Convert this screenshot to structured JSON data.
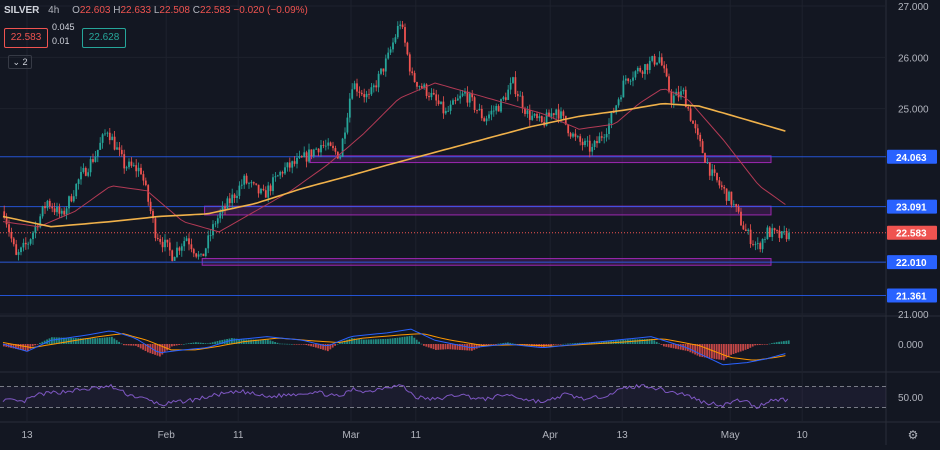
{
  "header": {
    "symbol": "SILVER",
    "interval": "4h",
    "o_label": "O",
    "open": "22.603",
    "h_label": "H",
    "high": "22.633",
    "l_label": "L",
    "low": "22.508",
    "c_label": "C",
    "close": "22.583",
    "change": "−0.020 (−0.09%)",
    "sell_price": "22.583",
    "buy_price": "22.628",
    "spread_top": "0.045",
    "spread_bottom": "0.01",
    "collapse_label": "2"
  },
  "chart_data": {
    "type": "candlestick",
    "title": "",
    "xlabel": "",
    "ylabel": "",
    "ylim": [
      21,
      27
    ],
    "y_ticks": [
      "27.000",
      "26.000",
      "25.000",
      "22.000",
      "21.000"
    ],
    "x_ticks": [
      "13",
      "Feb",
      "11",
      "Mar",
      "11",
      "Apr",
      "13",
      "May",
      "10"
    ],
    "x_tick_index": [
      10,
      68,
      98,
      145,
      172,
      228,
      258,
      303,
      333
    ],
    "bar_count": 312,
    "current_price": 22.583,
    "current_price_label": "22.583",
    "levels": [
      {
        "value": 24.063,
        "label": "24.063"
      },
      {
        "value": 23.091,
        "label": "23.091"
      },
      {
        "value": 22.01,
        "label": "22.010"
      },
      {
        "value": 21.361,
        "label": "21.361"
      }
    ],
    "zones": [
      {
        "from_index": 128,
        "to_index": 320,
        "low": 23.95,
        "high": 24.08
      },
      {
        "from_index": 84,
        "to_index": 320,
        "low": 22.93,
        "high": 23.1
      },
      {
        "from_index": 83,
        "to_index": 320,
        "low": 21.95,
        "high": 22.08
      }
    ],
    "anchors": [
      [
        0,
        23.0
      ],
      [
        5,
        22.1
      ],
      [
        10,
        22.4
      ],
      [
        18,
        23.2
      ],
      [
        24,
        22.9
      ],
      [
        31,
        23.6
      ],
      [
        38,
        24.1
      ],
      [
        43,
        24.6
      ],
      [
        50,
        23.9
      ],
      [
        57,
        23.8
      ],
      [
        63,
        22.6
      ],
      [
        70,
        22.15
      ],
      [
        76,
        22.5
      ],
      [
        82,
        22.05
      ],
      [
        88,
        22.8
      ],
      [
        94,
        23.2
      ],
      [
        100,
        23.6
      ],
      [
        108,
        23.3
      ],
      [
        116,
        23.8
      ],
      [
        124,
        24.0
      ],
      [
        132,
        24.3
      ],
      [
        140,
        24.1
      ],
      [
        145,
        25.5
      ],
      [
        152,
        25.2
      ],
      [
        160,
        26.0
      ],
      [
        165,
        26.7
      ],
      [
        170,
        25.6
      ],
      [
        177,
        25.3
      ],
      [
        184,
        24.9
      ],
      [
        192,
        25.3
      ],
      [
        200,
        24.8
      ],
      [
        207,
        25.1
      ],
      [
        212,
        25.5
      ],
      [
        218,
        24.9
      ],
      [
        224,
        24.7
      ],
      [
        230,
        25.0
      ],
      [
        238,
        24.4
      ],
      [
        245,
        24.2
      ],
      [
        252,
        24.7
      ],
      [
        259,
        25.6
      ],
      [
        266,
        25.8
      ],
      [
        273,
        26.0
      ],
      [
        278,
        25.2
      ],
      [
        283,
        25.3
      ],
      [
        289,
        24.4
      ],
      [
        295,
        23.7
      ],
      [
        303,
        23.2
      ],
      [
        309,
        22.6
      ],
      [
        314,
        22.3
      ],
      [
        318,
        22.6
      ],
      [
        324,
        22.5
      ],
      [
        327,
        22.583
      ]
    ],
    "ma200": [
      [
        0,
        22.9
      ],
      [
        20,
        22.7
      ],
      [
        45,
        22.8
      ],
      [
        65,
        22.9
      ],
      [
        85,
        22.95
      ],
      [
        105,
        23.15
      ],
      [
        125,
        23.45
      ],
      [
        145,
        23.7
      ],
      [
        160,
        23.9
      ],
      [
        180,
        24.15
      ],
      [
        200,
        24.4
      ],
      [
        220,
        24.65
      ],
      [
        240,
        24.85
      ],
      [
        260,
        24.98
      ],
      [
        275,
        25.1
      ],
      [
        290,
        25.05
      ],
      [
        305,
        24.85
      ],
      [
        327,
        24.55
      ]
    ],
    "ma50": [
      [
        0,
        22.8
      ],
      [
        15,
        22.7
      ],
      [
        30,
        23.0
      ],
      [
        45,
        23.5
      ],
      [
        60,
        23.4
      ],
      [
        75,
        22.8
      ],
      [
        90,
        22.6
      ],
      [
        105,
        23.0
      ],
      [
        120,
        23.4
      ],
      [
        135,
        23.9
      ],
      [
        150,
        24.5
      ],
      [
        165,
        25.2
      ],
      [
        180,
        25.5
      ],
      [
        195,
        25.3
      ],
      [
        210,
        25.1
      ],
      [
        225,
        24.9
      ],
      [
        240,
        24.6
      ],
      [
        255,
        24.7
      ],
      [
        265,
        25.1
      ],
      [
        275,
        25.4
      ],
      [
        285,
        25.2
      ],
      [
        300,
        24.4
      ],
      [
        315,
        23.5
      ],
      [
        327,
        23.1
      ]
    ],
    "macd": {
      "value_label": "0.000",
      "macd_line": [
        [
          0,
          0.0
        ],
        [
          10,
          -0.1
        ],
        [
          20,
          0.05
        ],
        [
          35,
          0.12
        ],
        [
          45,
          0.18
        ],
        [
          55,
          0.08
        ],
        [
          65,
          -0.12
        ],
        [
          75,
          -0.08
        ],
        [
          85,
          -0.05
        ],
        [
          95,
          0.05
        ],
        [
          110,
          0.1
        ],
        [
          125,
          0.05
        ],
        [
          135,
          -0.03
        ],
        [
          145,
          0.1
        ],
        [
          160,
          0.15
        ],
        [
          170,
          0.2
        ],
        [
          180,
          0.05
        ],
        [
          195,
          -0.05
        ],
        [
          210,
          0.0
        ],
        [
          225,
          -0.05
        ],
        [
          240,
          0.0
        ],
        [
          255,
          0.05
        ],
        [
          270,
          0.1
        ],
        [
          285,
          -0.05
        ],
        [
          300,
          -0.28
        ],
        [
          310,
          -0.25
        ],
        [
          318,
          -0.2
        ],
        [
          327,
          -0.12
        ]
      ],
      "signal_line": [
        [
          0,
          0.02
        ],
        [
          12,
          -0.05
        ],
        [
          25,
          0.02
        ],
        [
          40,
          0.1
        ],
        [
          50,
          0.14
        ],
        [
          60,
          0.05
        ],
        [
          70,
          -0.08
        ],
        [
          80,
          -0.08
        ],
        [
          90,
          -0.03
        ],
        [
          100,
          0.03
        ],
        [
          115,
          0.08
        ],
        [
          130,
          0.04
        ],
        [
          140,
          0.02
        ],
        [
          150,
          0.08
        ],
        [
          165,
          0.12
        ],
        [
          175,
          0.14
        ],
        [
          185,
          0.06
        ],
        [
          200,
          -0.02
        ],
        [
          215,
          -0.01
        ],
        [
          230,
          -0.03
        ],
        [
          245,
          0.0
        ],
        [
          260,
          0.03
        ],
        [
          275,
          0.07
        ],
        [
          290,
          -0.02
        ],
        [
          303,
          -0.18
        ],
        [
          313,
          -0.22
        ],
        [
          322,
          -0.18
        ],
        [
          327,
          -0.15
        ]
      ]
    },
    "rsi": {
      "value_label": "50.00",
      "upper": 70,
      "lower": 30,
      "line": [
        [
          0,
          45
        ],
        [
          8,
          40
        ],
        [
          15,
          55
        ],
        [
          25,
          60
        ],
        [
          35,
          65
        ],
        [
          45,
          70
        ],
        [
          52,
          55
        ],
        [
          60,
          45
        ],
        [
          66,
          35
        ],
        [
          72,
          40
        ],
        [
          80,
          45
        ],
        [
          90,
          55
        ],
        [
          100,
          60
        ],
        [
          110,
          50
        ],
        [
          120,
          55
        ],
        [
          130,
          60
        ],
        [
          140,
          50
        ],
        [
          146,
          65
        ],
        [
          152,
          60
        ],
        [
          160,
          70
        ],
        [
          166,
          72
        ],
        [
          172,
          50
        ],
        [
          180,
          45
        ],
        [
          190,
          55
        ],
        [
          200,
          45
        ],
        [
          210,
          55
        ],
        [
          218,
          45
        ],
        [
          226,
          40
        ],
        [
          234,
          55
        ],
        [
          244,
          45
        ],
        [
          252,
          55
        ],
        [
          260,
          68
        ],
        [
          268,
          72
        ],
        [
          276,
          62
        ],
        [
          284,
          55
        ],
        [
          292,
          40
        ],
        [
          300,
          35
        ],
        [
          308,
          45
        ],
        [
          314,
          30
        ],
        [
          320,
          45
        ],
        [
          327,
          45
        ]
      ]
    }
  }
}
